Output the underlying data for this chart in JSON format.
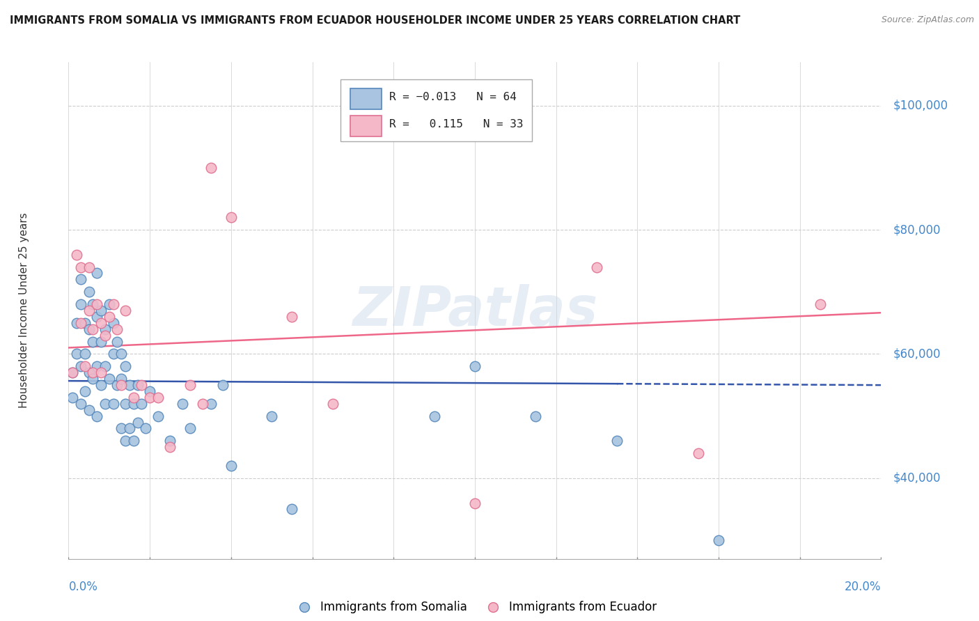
{
  "title": "IMMIGRANTS FROM SOMALIA VS IMMIGRANTS FROM ECUADOR HOUSEHOLDER INCOME UNDER 25 YEARS CORRELATION CHART",
  "source": "Source: ZipAtlas.com",
  "ylabel": "Householder Income Under 25 years",
  "xlim": [
    0.0,
    0.2
  ],
  "ylim": [
    27000,
    107000
  ],
  "ytick_values": [
    40000,
    60000,
    80000,
    100000
  ],
  "ytick_labels": [
    "$40,000",
    "$60,000",
    "$80,000",
    "$100,000"
  ],
  "watermark": "ZIPatlas",
  "somalia_color": "#a8c4e0",
  "somalia_edge_color": "#5588bb",
  "ecuador_color": "#f4b8c8",
  "ecuador_edge_color": "#e07090",
  "somalia_line_color": "#3355aa",
  "ecuador_line_color": "#ee6688",
  "somalia_R": -0.013,
  "somalia_N": 64,
  "ecuador_R": 0.115,
  "ecuador_N": 33,
  "somalia_x": [
    0.001,
    0.001,
    0.002,
    0.002,
    0.003,
    0.003,
    0.003,
    0.003,
    0.004,
    0.004,
    0.004,
    0.005,
    0.005,
    0.005,
    0.005,
    0.006,
    0.006,
    0.006,
    0.007,
    0.007,
    0.007,
    0.007,
    0.008,
    0.008,
    0.008,
    0.009,
    0.009,
    0.009,
    0.01,
    0.01,
    0.011,
    0.011,
    0.011,
    0.012,
    0.012,
    0.013,
    0.013,
    0.013,
    0.014,
    0.014,
    0.014,
    0.015,
    0.015,
    0.016,
    0.016,
    0.017,
    0.017,
    0.018,
    0.019,
    0.02,
    0.022,
    0.025,
    0.028,
    0.03,
    0.035,
    0.038,
    0.04,
    0.05,
    0.055,
    0.09,
    0.1,
    0.115,
    0.135,
    0.16
  ],
  "somalia_y": [
    57000,
    53000,
    65000,
    60000,
    72000,
    68000,
    58000,
    52000,
    65000,
    60000,
    54000,
    70000,
    64000,
    57000,
    51000,
    68000,
    62000,
    56000,
    73000,
    66000,
    58000,
    50000,
    67000,
    62000,
    55000,
    64000,
    58000,
    52000,
    68000,
    56000,
    65000,
    60000,
    52000,
    62000,
    55000,
    60000,
    56000,
    48000,
    58000,
    52000,
    46000,
    55000,
    48000,
    52000,
    46000,
    55000,
    49000,
    52000,
    48000,
    54000,
    50000,
    46000,
    52000,
    48000,
    52000,
    55000,
    42000,
    50000,
    35000,
    50000,
    58000,
    50000,
    46000,
    30000
  ],
  "ecuador_x": [
    0.001,
    0.002,
    0.003,
    0.003,
    0.004,
    0.005,
    0.005,
    0.006,
    0.006,
    0.007,
    0.008,
    0.008,
    0.009,
    0.01,
    0.011,
    0.012,
    0.013,
    0.014,
    0.016,
    0.018,
    0.02,
    0.022,
    0.025,
    0.03,
    0.033,
    0.035,
    0.04,
    0.055,
    0.065,
    0.1,
    0.13,
    0.155,
    0.185
  ],
  "ecuador_y": [
    57000,
    76000,
    74000,
    65000,
    58000,
    74000,
    67000,
    64000,
    57000,
    68000,
    65000,
    57000,
    63000,
    66000,
    68000,
    64000,
    55000,
    67000,
    53000,
    55000,
    53000,
    53000,
    45000,
    55000,
    52000,
    90000,
    82000,
    66000,
    52000,
    36000,
    74000,
    44000,
    68000
  ]
}
